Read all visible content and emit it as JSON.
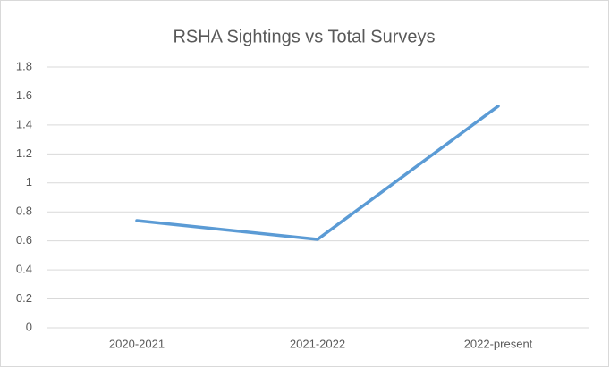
{
  "chart_data": {
    "type": "line",
    "title": "RSHA Sightings vs Total Surveys",
    "categories": [
      "2020-2021",
      "2021-2022",
      "2022-present"
    ],
    "series": [
      {
        "color": "#5b9bd5",
        "values": [
          0.74,
          0.61,
          1.53
        ]
      }
    ],
    "ylim": [
      0,
      1.8
    ],
    "yticks": [
      0,
      0.2,
      0.4,
      0.6,
      0.8,
      1,
      1.2,
      1.4,
      1.6,
      1.8
    ],
    "grid": true
  }
}
